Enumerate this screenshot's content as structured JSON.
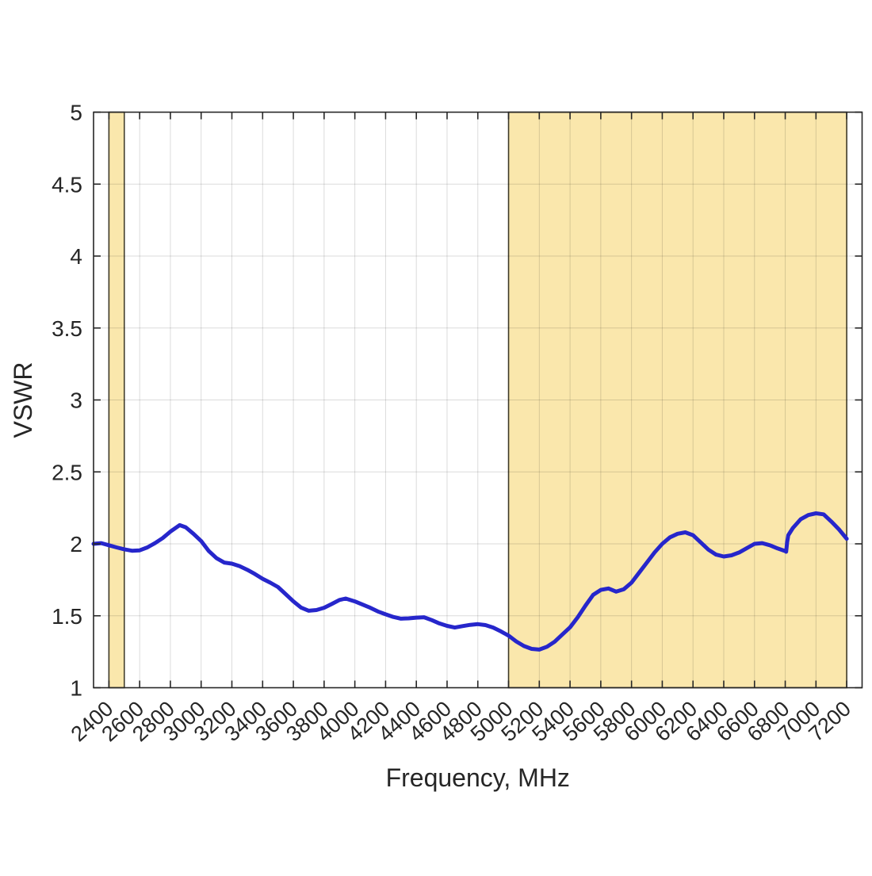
{
  "chart_data": {
    "type": "line",
    "title": "",
    "xlabel": "Frequency, MHz",
    "ylabel": "VSWR",
    "xlim": [
      2300,
      7300
    ],
    "ylim": [
      1,
      5
    ],
    "grid": true,
    "legend": "none",
    "x_tick_labels": [
      "2400",
      "2600",
      "2800",
      "3000",
      "3200",
      "3400",
      "3600",
      "3800",
      "4000",
      "4200",
      "4400",
      "4600",
      "4800",
      "5000",
      "5200",
      "5400",
      "5600",
      "5800",
      "6000",
      "6200",
      "6400",
      "6600",
      "6800",
      "7000",
      "7200"
    ],
    "x_ticks": [
      2400,
      2600,
      2800,
      3000,
      3200,
      3400,
      3600,
      3800,
      4000,
      4200,
      4400,
      4600,
      4800,
      5000,
      5200,
      5400,
      5600,
      5800,
      6000,
      6200,
      6400,
      6600,
      6800,
      7000,
      7200
    ],
    "y_tick_labels": [
      "1",
      "1.5",
      "2",
      "2.5",
      "3",
      "3.5",
      "4",
      "4.5",
      "5"
    ],
    "y_ticks": [
      1,
      1.5,
      2,
      2.5,
      3,
      3.5,
      4,
      4.5,
      5
    ],
    "x_tick_rotation_deg": -42,
    "shaded_bands": [
      {
        "name": "band-2400-2500-MHz",
        "from": 2400,
        "to": 2500
      },
      {
        "name": "band-5000-7200-MHz",
        "from": 5000,
        "to": 7200
      }
    ],
    "series": [
      {
        "name": "VSWR",
        "color": "#2626cb",
        "points": [
          [
            2300,
            2.0
          ],
          [
            2350,
            2.005
          ],
          [
            2400,
            1.99
          ],
          [
            2450,
            1.975
          ],
          [
            2500,
            1.962
          ],
          [
            2550,
            1.952
          ],
          [
            2600,
            1.955
          ],
          [
            2650,
            1.975
          ],
          [
            2700,
            2.005
          ],
          [
            2750,
            2.04
          ],
          [
            2800,
            2.085
          ],
          [
            2860,
            2.13
          ],
          [
            2900,
            2.115
          ],
          [
            2950,
            2.07
          ],
          [
            3000,
            2.02
          ],
          [
            3050,
            1.95
          ],
          [
            3100,
            1.9
          ],
          [
            3150,
            1.87
          ],
          [
            3200,
            1.862
          ],
          [
            3250,
            1.845
          ],
          [
            3300,
            1.82
          ],
          [
            3350,
            1.79
          ],
          [
            3400,
            1.757
          ],
          [
            3450,
            1.73
          ],
          [
            3500,
            1.7
          ],
          [
            3550,
            1.65
          ],
          [
            3600,
            1.6
          ],
          [
            3650,
            1.557
          ],
          [
            3700,
            1.535
          ],
          [
            3750,
            1.54
          ],
          [
            3800,
            1.556
          ],
          [
            3850,
            1.582
          ],
          [
            3900,
            1.61
          ],
          [
            3940,
            1.62
          ],
          [
            4000,
            1.6
          ],
          [
            4050,
            1.578
          ],
          [
            4100,
            1.556
          ],
          [
            4150,
            1.53
          ],
          [
            4200,
            1.51
          ],
          [
            4250,
            1.492
          ],
          [
            4300,
            1.48
          ],
          [
            4350,
            1.482
          ],
          [
            4400,
            1.487
          ],
          [
            4450,
            1.49
          ],
          [
            4500,
            1.47
          ],
          [
            4550,
            1.447
          ],
          [
            4600,
            1.43
          ],
          [
            4650,
            1.418
          ],
          [
            4700,
            1.428
          ],
          [
            4750,
            1.437
          ],
          [
            4800,
            1.442
          ],
          [
            4850,
            1.435
          ],
          [
            4900,
            1.418
          ],
          [
            4950,
            1.392
          ],
          [
            5000,
            1.362
          ],
          [
            5050,
            1.322
          ],
          [
            5100,
            1.29
          ],
          [
            5150,
            1.27
          ],
          [
            5200,
            1.265
          ],
          [
            5250,
            1.285
          ],
          [
            5300,
            1.32
          ],
          [
            5350,
            1.37
          ],
          [
            5400,
            1.42
          ],
          [
            5450,
            1.49
          ],
          [
            5500,
            1.57
          ],
          [
            5550,
            1.645
          ],
          [
            5600,
            1.68
          ],
          [
            5650,
            1.69
          ],
          [
            5700,
            1.668
          ],
          [
            5750,
            1.685
          ],
          [
            5800,
            1.73
          ],
          [
            5850,
            1.8
          ],
          [
            5900,
            1.87
          ],
          [
            5950,
            1.94
          ],
          [
            6000,
            2.0
          ],
          [
            6050,
            2.045
          ],
          [
            6100,
            2.07
          ],
          [
            6150,
            2.08
          ],
          [
            6200,
            2.06
          ],
          [
            6250,
            2.01
          ],
          [
            6300,
            1.96
          ],
          [
            6350,
            1.925
          ],
          [
            6400,
            1.912
          ],
          [
            6450,
            1.92
          ],
          [
            6500,
            1.94
          ],
          [
            6550,
            1.97
          ],
          [
            6600,
            2.0
          ],
          [
            6650,
            2.005
          ],
          [
            6700,
            1.99
          ],
          [
            6750,
            1.968
          ],
          [
            6800,
            1.95
          ],
          [
            6806,
            1.945
          ],
          [
            6812,
            2.01
          ],
          [
            6820,
            2.06
          ],
          [
            6850,
            2.11
          ],
          [
            6900,
            2.17
          ],
          [
            6950,
            2.2
          ],
          [
            7000,
            2.212
          ],
          [
            7050,
            2.205
          ],
          [
            7100,
            2.155
          ],
          [
            7150,
            2.1
          ],
          [
            7200,
            2.035
          ]
        ]
      }
    ],
    "colors": {
      "band_fill": "#fae7ac",
      "band_border": "#45412e",
      "grid_line": "rgba(0,0,0,0.14)",
      "axis": "#262626",
      "curve": "#2626cb",
      "text": "#262626"
    }
  }
}
